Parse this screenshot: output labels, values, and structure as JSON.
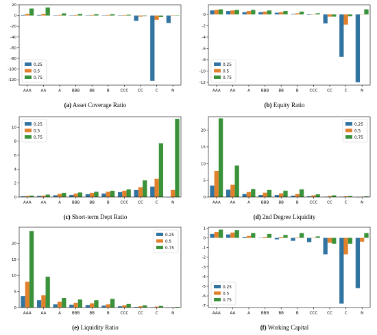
{
  "colors": {
    "s025": "#3274a1",
    "s05": "#e1812c",
    "s075": "#3a923a"
  },
  "chart_data": [
    {
      "type": "bar",
      "letter": "(a)",
      "title": "Asset Coverage Ratio",
      "categories": [
        "AAA",
        "AA",
        "A",
        "BBB",
        "BB",
        "B",
        "CCC",
        "CC",
        "C",
        "N"
      ],
      "ylim": [
        -130,
        20
      ],
      "yticks": [
        20,
        0,
        -20,
        -40,
        -60,
        -80,
        -100,
        -120
      ],
      "legend": "lower-left",
      "grid": false,
      "series": [
        {
          "name": "0.25",
          "values": [
            1,
            1,
            0.3,
            0.5,
            0.5,
            0.5,
            0.3,
            -10,
            -122,
            -14
          ]
        },
        {
          "name": "0.5",
          "values": [
            3,
            3,
            1,
            1,
            1,
            1,
            0.8,
            -2,
            -8,
            0.5
          ]
        },
        {
          "name": "0.75",
          "values": [
            13,
            15,
            4,
            3,
            2.5,
            2.5,
            1.5,
            -1,
            -3,
            0
          ]
        }
      ]
    },
    {
      "type": "bar",
      "letter": "(b)",
      "title": "Equity Ratio",
      "categories": [
        "AAA",
        "AA",
        "A",
        "BBB",
        "BB",
        "B",
        "CCC",
        "CC",
        "C",
        "N"
      ],
      "ylim": [
        -12.5,
        1.7
      ],
      "yticks": [
        0,
        -2,
        -4,
        -6,
        -8,
        -10,
        -12
      ],
      "legend": "lower-left",
      "grid": false,
      "series": [
        {
          "name": "0.25",
          "values": [
            0.7,
            0.6,
            0.4,
            0.4,
            0.3,
            0.1,
            -0.1,
            -1.6,
            -7.5,
            -12
          ]
        },
        {
          "name": "0.5",
          "values": [
            0.8,
            0.7,
            0.6,
            0.5,
            0.4,
            0.2,
            0,
            -0.4,
            -1.8,
            0
          ]
        },
        {
          "name": "0.75",
          "values": [
            0.9,
            0.8,
            0.8,
            0.7,
            0.6,
            0.5,
            0.2,
            -0.4,
            -0.3,
            0.9
          ]
        }
      ]
    },
    {
      "type": "bar",
      "letter": "(c)",
      "title": "Short-term Dept Ratio",
      "categories": [
        "AAA",
        "AA",
        "A",
        "BBB",
        "BB",
        "B",
        "CCC",
        "CC",
        "C",
        "N"
      ],
      "ylim": [
        0,
        11.5
      ],
      "yticks": [
        0,
        2,
        4,
        6,
        8,
        10
      ],
      "legend": "upper-left",
      "grid": false,
      "series": [
        {
          "name": "0.25",
          "values": [
            0.1,
            0.15,
            0.25,
            0.3,
            0.4,
            0.5,
            0.7,
            1,
            1.5,
            0
          ]
        },
        {
          "name": "0.5",
          "values": [
            0.15,
            0.2,
            0.45,
            0.5,
            0.6,
            0.75,
            0.9,
            1.4,
            2.6,
            1
          ]
        },
        {
          "name": "0.75",
          "values": [
            0.2,
            0.35,
            0.6,
            0.65,
            0.75,
            0.9,
            1.1,
            2.4,
            7.7,
            11.2
          ]
        }
      ]
    },
    {
      "type": "bar",
      "letter": "(d)",
      "title": "2nd Degree Liquidity",
      "categories": [
        "AAA",
        "AA",
        "A",
        "BBB",
        "BB",
        "B",
        "CCC",
        "CC",
        "C",
        "N"
      ],
      "ylim": [
        0,
        24
      ],
      "yticks": [
        0,
        5,
        10,
        15,
        20
      ],
      "legend": "upper-right",
      "grid": false,
      "series": [
        {
          "name": "0.25",
          "values": [
            3.4,
            2.2,
            0.9,
            0.6,
            0.6,
            0.4,
            0.2,
            0.1,
            0.1,
            0
          ]
        },
        {
          "name": "0.5",
          "values": [
            7.8,
            3.7,
            1.5,
            1.3,
            1.1,
            0.9,
            0.5,
            0.3,
            0.2,
            0.1
          ]
        },
        {
          "name": "0.75",
          "values": [
            23.5,
            9.4,
            2.4,
            2.1,
            1.9,
            2.3,
            0.8,
            0.5,
            0.3,
            0.2
          ]
        }
      ]
    },
    {
      "type": "bar",
      "letter": "(e)",
      "title": "Liquidity Ratio",
      "categories": [
        "AAA",
        "AA",
        "A",
        "BBB",
        "BB",
        "B",
        "CCC",
        "CC",
        "C",
        "N"
      ],
      "ylim": [
        0,
        25
      ],
      "yticks": [
        0,
        5,
        10,
        15,
        20
      ],
      "legend": "upper-right",
      "grid": false,
      "series": [
        {
          "name": "0.25",
          "values": [
            3.6,
            2.3,
            1,
            0.9,
            0.8,
            0.6,
            0.4,
            0.2,
            0.1,
            0
          ]
        },
        {
          "name": "0.5",
          "values": [
            8,
            3.8,
            1.8,
            1.5,
            1.3,
            1,
            0.7,
            0.4,
            0.3,
            0.1
          ]
        },
        {
          "name": "0.75",
          "values": [
            23.8,
            9.6,
            3,
            2.5,
            2.3,
            2.7,
            1.1,
            0.7,
            0.5,
            0.2
          ]
        }
      ]
    },
    {
      "type": "bar",
      "letter": "(f)",
      "title": "Working Capital",
      "categories": [
        "AAA",
        "AA",
        "A",
        "BBB",
        "BB",
        "B",
        "CCC",
        "CC",
        "C",
        "N"
      ],
      "ylim": [
        -7.2,
        1.1
      ],
      "yticks": [
        1,
        0,
        -1,
        -2,
        -3,
        -4,
        -5,
        -6,
        -7
      ],
      "legend": "lower-left",
      "grid": false,
      "series": [
        {
          "name": "0.25",
          "values": [
            0.4,
            0.35,
            0.1,
            0,
            -0.15,
            -0.3,
            -0.45,
            -1.7,
            -6.8,
            -5.2
          ]
        },
        {
          "name": "0.5",
          "values": [
            0.6,
            0.55,
            0.2,
            0.1,
            0.1,
            0.05,
            0,
            -0.5,
            -1.7,
            -0.4
          ]
        },
        {
          "name": "0.75",
          "values": [
            0.85,
            0.8,
            0.5,
            0.4,
            0.3,
            0.5,
            0.15,
            -0.6,
            -0.6,
            0.5
          ]
        }
      ]
    }
  ]
}
